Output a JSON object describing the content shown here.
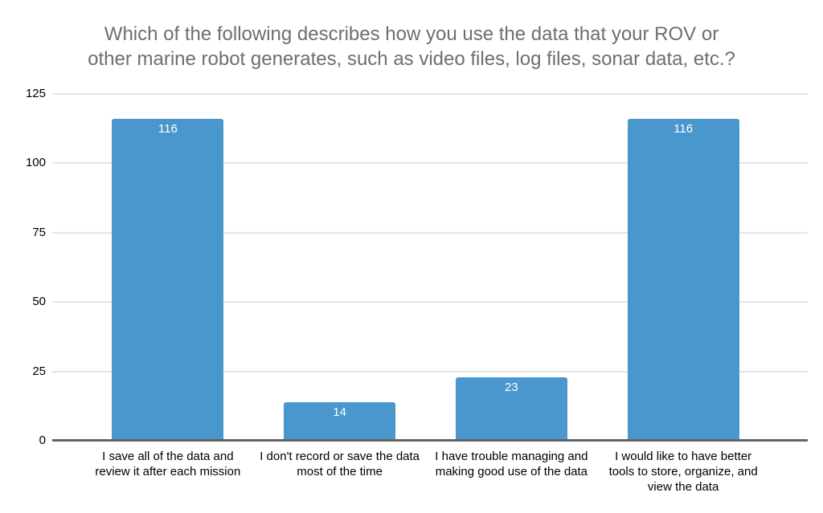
{
  "header": {
    "title_lines": [
      "Which of the following describes how you use the data that your ROV or",
      "other marine robot generates, such as video files, log files, sonar data, etc.?"
    ]
  },
  "chart_data": {
    "type": "bar",
    "title": "Which of the following describes how you use the data that your ROV or other marine robot generates, such as video files, log files, sonar data, etc.?",
    "categories": [
      "I save all of the data and review it after each mission",
      "I don't record or save the data most of the time",
      "I have trouble managing and making good use of the data",
      "I would like to have better tools to store, organize, and view the data"
    ],
    "values": [
      116,
      14,
      23,
      116
    ],
    "bar_labels": [
      "116",
      "14",
      "23",
      "116"
    ],
    "xlabel": "",
    "ylabel": "",
    "ylim": [
      0,
      125
    ],
    "yticks": [
      0,
      25,
      50,
      75,
      100,
      125
    ],
    "grid": true,
    "legend": "none",
    "colors": {
      "bar": "#4a97ce",
      "title": "#6e6e6e",
      "axis_labels": "#000000",
      "value_labels": "#ffffff",
      "gridline": "#e6e6e6",
      "baseline": "#636363",
      "background": "#ffffff"
    }
  }
}
